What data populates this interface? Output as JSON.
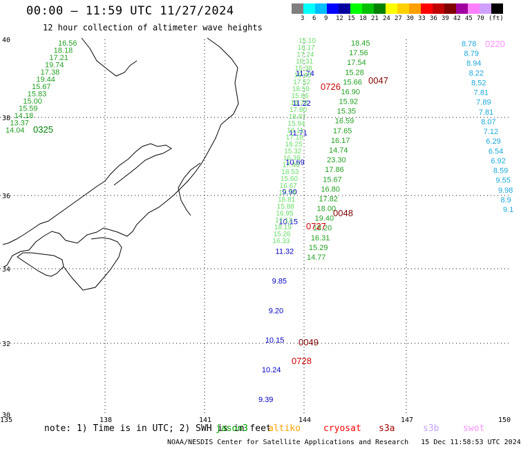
{
  "header": {
    "title": "00:00 – 11:59 UTC 11/27/2024",
    "subtitle": "12 hour collection of altimeter wave heights"
  },
  "colorbar": {
    "colors": [
      "#7f7f7f",
      "#00ffff",
      "#00bfff",
      "#0000ff",
      "#0000a0",
      "#00ff00",
      "#00c000",
      "#008000",
      "#ffff00",
      "#ffd000",
      "#ffa000",
      "#ff0000",
      "#c00000",
      "#800000",
      "#a000a0",
      "#ff80ff",
      "#d0a0ff",
      "#000000"
    ],
    "labels": [
      "3",
      "6",
      "9",
      "12",
      "15",
      "18",
      "21",
      "24",
      "27",
      "30",
      "33",
      "36",
      "39",
      "42",
      "45",
      "70",
      "(ft)"
    ]
  },
  "axes": {
    "lon_labels": [
      "135",
      "138",
      "141",
      "144",
      "147",
      "150"
    ],
    "lat_labels": [
      "40",
      "38",
      "36",
      "34",
      "32",
      "30"
    ]
  },
  "footer": {
    "note": "note: 1) Time is in UTC; 2) SWH is in feet",
    "credit": "NOAA/NESDIS Center for Satellite Applications and Research   15 Dec 11:58:53 UTC 2024"
  },
  "satellites": [
    {
      "name": "jason3",
      "color": "#00a000"
    },
    {
      "name": "altiko",
      "color": "#ffa000"
    },
    {
      "name": "cryosat",
      "color": "#ff0000"
    },
    {
      "name": "s3a",
      "color": "#a00000"
    },
    {
      "name": "s3b",
      "color": "#c0a0ff"
    },
    {
      "name": "swot",
      "color": "#ff90ff"
    }
  ],
  "time_labels": [
    {
      "text": "0325",
      "color": "#008000"
    },
    {
      "text": "0726",
      "color": "#cc0000"
    },
    {
      "text": "0047",
      "color": "#800000"
    },
    {
      "text": "0048",
      "color": "#800000"
    },
    {
      "text": "0727",
      "color": "#cc0000"
    },
    {
      "text": "0049",
      "color": "#800000"
    },
    {
      "text": "0728",
      "color": "#cc0000"
    },
    {
      "text": "0220",
      "color": "#ff90ff"
    }
  ],
  "tracks": {
    "west_green": [
      "16.56",
      "18.18",
      "17.21",
      "19.74",
      "17.38",
      "19.44",
      "15.67",
      "15.83",
      "15.00",
      "15.59",
      "14.18",
      "13.37",
      "14.04"
    ],
    "east_green": [
      "18.45",
      "17.56",
      "17.54",
      "15.28",
      "15.66",
      "16.90",
      "15.92",
      "15.35",
      "16.59",
      "17.65",
      "16.17",
      "14.74",
      "23.30",
      "17.86",
      "15.67",
      "16.80",
      "17.82",
      "18.00",
      "19.40",
      "18.20",
      "16.31",
      "15.29",
      "14.77"
    ],
    "cyan_east": [
      "8.78",
      "8.79",
      "8.94",
      "8.22",
      "8.52",
      "7.81",
      "7.89",
      "7.81",
      "8.07",
      "7.12",
      "6.29",
      "6.54",
      "6.92",
      "8.59",
      "9.55",
      "9.98",
      "8.9",
      "9.1"
    ],
    "blue_track": [
      "11.74",
      "11.22",
      "11.71",
      "10.69",
      "9.90",
      "10.15",
      "11.32",
      "9.85",
      "9.20",
      "10.15",
      "10.24",
      "9.39"
    ]
  }
}
